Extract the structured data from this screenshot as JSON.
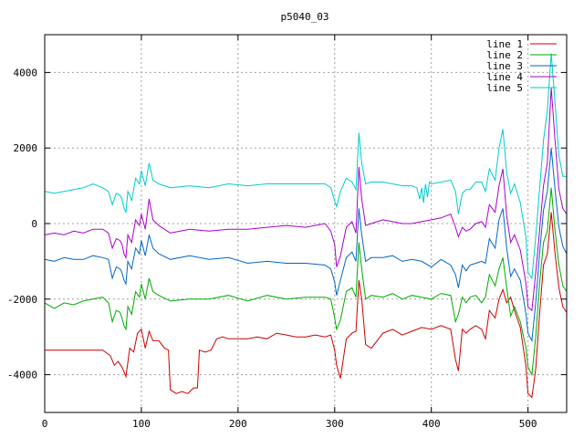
{
  "chart_data": {
    "type": "line",
    "title": "p5040_03",
    "xlabel": "",
    "ylabel": "",
    "xlim": [
      0,
      540
    ],
    "ylim": [
      -5000,
      5000
    ],
    "grid": true,
    "legend_position": "top-right",
    "x_ticks": [
      0,
      100,
      200,
      300,
      400,
      500
    ],
    "y_ticks": [
      -4000,
      -2000,
      0,
      2000,
      4000
    ],
    "x_tick_labels": [
      "0",
      "100",
      "200",
      "300",
      "400",
      "500"
    ],
    "y_tick_labels": [
      "-4000",
      "-2000",
      "0",
      "2000",
      "4000"
    ],
    "series": [
      {
        "name": "line 1",
        "color": "#cc0000",
        "x": [
          0,
          20,
          40,
          60,
          68,
          72,
          76,
          80,
          84,
          88,
          92,
          96,
          100,
          104,
          108,
          112,
          118,
          124,
          128,
          130,
          136,
          142,
          148,
          154,
          158,
          160,
          166,
          172,
          178,
          184,
          190,
          200,
          210,
          220,
          230,
          240,
          250,
          260,
          270,
          280,
          290,
          296,
          300,
          302,
          306,
          312,
          318,
          322,
          325,
          328,
          332,
          338,
          350,
          360,
          370,
          380,
          390,
          400,
          410,
          420,
          425,
          428,
          432,
          436,
          440,
          446,
          452,
          456,
          460,
          466,
          470,
          474,
          478,
          482,
          486,
          492,
          498,
          500,
          504,
          508,
          512,
          516,
          520,
          524,
          528,
          532,
          536,
          540
        ],
        "y": [
          -3350,
          -3350,
          -3350,
          -3350,
          -3500,
          -3750,
          -3650,
          -3800,
          -4050,
          -3300,
          -3400,
          -2900,
          -2800,
          -3300,
          -2850,
          -3100,
          -3100,
          -3300,
          -3350,
          -4400,
          -4500,
          -4450,
          -4500,
          -4350,
          -4350,
          -3350,
          -3400,
          -3350,
          -3050,
          -3000,
          -3050,
          -3050,
          -3050,
          -3000,
          -3050,
          -2900,
          -2950,
          -3000,
          -3000,
          -2950,
          -3000,
          -2950,
          -3350,
          -3750,
          -4100,
          -3050,
          -2900,
          -2850,
          -1500,
          -2000,
          -3200,
          -3300,
          -2900,
          -2800,
          -2950,
          -2850,
          -2750,
          -2800,
          -2700,
          -2800,
          -3600,
          -3900,
          -2800,
          -2900,
          -2800,
          -2700,
          -2800,
          -3050,
          -2300,
          -2500,
          -2000,
          -1750,
          -2100,
          -1950,
          -2300,
          -2750,
          -3800,
          -4500,
          -4600,
          -3850,
          -2400,
          -1100,
          -800,
          300,
          -800,
          -1700,
          -2200,
          -2350
        ]
      },
      {
        "name": "line 2",
        "color": "#00aa00",
        "x": [
          0,
          10,
          20,
          30,
          40,
          50,
          60,
          66,
          70,
          74,
          78,
          80,
          82,
          84,
          86,
          88,
          90,
          94,
          98,
          100,
          104,
          108,
          112,
          118,
          130,
          150,
          170,
          190,
          210,
          230,
          250,
          270,
          290,
          296,
          300,
          302,
          306,
          312,
          318,
          322,
          325,
          328,
          332,
          338,
          350,
          360,
          370,
          380,
          390,
          400,
          410,
          420,
          425,
          428,
          432,
          436,
          440,
          446,
          452,
          456,
          460,
          466,
          470,
          474,
          478,
          482,
          486,
          492,
          498,
          500,
          504,
          508,
          512,
          516,
          520,
          524,
          528,
          532,
          536,
          540
        ],
        "y": [
          -2100,
          -2250,
          -2100,
          -2150,
          -2050,
          -2000,
          -1950,
          -2100,
          -2600,
          -2300,
          -2350,
          -2500,
          -2700,
          -2800,
          -2200,
          -2300,
          -2400,
          -1800,
          -1950,
          -1600,
          -2000,
          -1450,
          -1800,
          -1900,
          -2050,
          -2000,
          -2000,
          -1900,
          -2050,
          -1900,
          -2000,
          -1950,
          -1950,
          -2000,
          -2500,
          -2800,
          -2550,
          -1800,
          -1700,
          -1950,
          -500,
          -1200,
          -2000,
          -1900,
          -1950,
          -1850,
          -2000,
          -1900,
          -1950,
          -2000,
          -1850,
          -1900,
          -2600,
          -2400,
          -1950,
          -2100,
          -1950,
          -1900,
          -2100,
          -1950,
          -1350,
          -1650,
          -1200,
          -900,
          -1700,
          -2450,
          -2200,
          -2600,
          -3300,
          -3800,
          -4000,
          -3000,
          -1600,
          -500,
          -200,
          950,
          -200,
          -1100,
          -1650,
          -1800
        ]
      },
      {
        "name": "line 3",
        "color": "#0066cc",
        "x": [
          0,
          10,
          20,
          30,
          40,
          50,
          60,
          66,
          70,
          74,
          78,
          80,
          82,
          84,
          86,
          88,
          90,
          94,
          98,
          100,
          104,
          108,
          112,
          118,
          130,
          150,
          170,
          190,
          210,
          230,
          250,
          270,
          290,
          296,
          300,
          302,
          306,
          312,
          318,
          322,
          325,
          328,
          332,
          338,
          350,
          360,
          370,
          380,
          390,
          400,
          410,
          420,
          425,
          428,
          432,
          436,
          440,
          446,
          452,
          456,
          460,
          466,
          470,
          474,
          478,
          482,
          486,
          492,
          498,
          500,
          504,
          508,
          512,
          516,
          520,
          524,
          528,
          532,
          536,
          540
        ],
        "y": [
          -950,
          -1000,
          -900,
          -950,
          -950,
          -850,
          -900,
          -950,
          -1450,
          -1150,
          -1200,
          -1300,
          -1500,
          -1600,
          -1000,
          -1100,
          -1200,
          -650,
          -800,
          -450,
          -850,
          -300,
          -650,
          -800,
          -950,
          -850,
          -950,
          -900,
          -1050,
          -1000,
          -1050,
          -1050,
          -1100,
          -1200,
          -1550,
          -1900,
          -1500,
          -900,
          -750,
          -1000,
          400,
          -300,
          -1000,
          -900,
          -900,
          -850,
          -1000,
          -950,
          -1000,
          -1150,
          -950,
          -1100,
          -1350,
          -1700,
          -1100,
          -1250,
          -1100,
          -1050,
          -1000,
          -1050,
          -400,
          -650,
          100,
          400,
          -650,
          -1400,
          -1200,
          -1500,
          -2400,
          -2900,
          -3100,
          -2100,
          -800,
          350,
          850,
          2000,
          900,
          -100,
          -600,
          -800
        ]
      },
      {
        "name": "line 4",
        "color": "#aa00cc",
        "x": [
          0,
          10,
          20,
          30,
          40,
          50,
          60,
          66,
          70,
          74,
          78,
          80,
          82,
          84,
          86,
          88,
          90,
          94,
          98,
          100,
          104,
          108,
          112,
          118,
          130,
          150,
          170,
          190,
          210,
          230,
          250,
          270,
          290,
          296,
          300,
          302,
          306,
          312,
          318,
          322,
          325,
          328,
          332,
          338,
          350,
          360,
          370,
          380,
          390,
          400,
          410,
          420,
          425,
          428,
          432,
          436,
          440,
          446,
          452,
          456,
          460,
          466,
          470,
          474,
          478,
          482,
          486,
          492,
          498,
          500,
          504,
          508,
          512,
          516,
          520,
          524,
          528,
          532,
          536,
          540
        ],
        "y": [
          -300,
          -250,
          -300,
          -200,
          -250,
          -150,
          -150,
          -250,
          -650,
          -400,
          -450,
          -550,
          -800,
          -900,
          -300,
          -400,
          -500,
          100,
          -50,
          250,
          -150,
          650,
          100,
          -50,
          -250,
          -150,
          -200,
          -150,
          -150,
          -100,
          -50,
          -100,
          0,
          -200,
          -550,
          -1150,
          -850,
          -100,
          50,
          -250,
          1500,
          650,
          -50,
          0,
          100,
          50,
          0,
          0,
          50,
          100,
          150,
          250,
          -100,
          -350,
          -100,
          -200,
          -150,
          0,
          50,
          -100,
          500,
          300,
          1000,
          1450,
          200,
          -500,
          -300,
          -700,
          -1600,
          -2200,
          -2300,
          -1300,
          -200,
          1000,
          1600,
          3600,
          2200,
          900,
          400,
          250
        ]
      },
      {
        "name": "line 5",
        "color": "#00cccc",
        "x": [
          0,
          10,
          20,
          30,
          40,
          50,
          60,
          66,
          70,
          74,
          78,
          80,
          82,
          84,
          86,
          88,
          90,
          94,
          98,
          100,
          104,
          108,
          112,
          118,
          130,
          150,
          170,
          190,
          210,
          230,
          250,
          270,
          290,
          296,
          300,
          302,
          306,
          312,
          318,
          322,
          325,
          328,
          332,
          338,
          350,
          360,
          370,
          380,
          385,
          388,
          390,
          392,
          394,
          396,
          398,
          400,
          410,
          420,
          425,
          428,
          432,
          436,
          440,
          446,
          452,
          456,
          460,
          466,
          470,
          474,
          478,
          482,
          486,
          492,
          498,
          500,
          504,
          508,
          512,
          516,
          520,
          524,
          528,
          532,
          536,
          540
        ],
        "y": [
          850,
          800,
          850,
          900,
          950,
          1050,
          950,
          850,
          500,
          800,
          750,
          650,
          400,
          300,
          850,
          750,
          600,
          1200,
          1050,
          1400,
          1000,
          1600,
          1150,
          1050,
          950,
          1000,
          950,
          1050,
          1000,
          1050,
          1050,
          1050,
          1050,
          950,
          600,
          450,
          850,
          1200,
          1100,
          900,
          2400,
          1600,
          1050,
          1100,
          1100,
          1050,
          1000,
          1000,
          950,
          650,
          950,
          550,
          1050,
          700,
          1100,
          1050,
          1100,
          1150,
          850,
          250,
          800,
          900,
          900,
          1100,
          1100,
          850,
          1450,
          1150,
          2000,
          2500,
          1350,
          800,
          1050,
          550,
          -400,
          -1300,
          -1450,
          -350,
          900,
          2200,
          3000,
          4500,
          3200,
          1800,
          1250,
          1250
        ]
      }
    ]
  }
}
